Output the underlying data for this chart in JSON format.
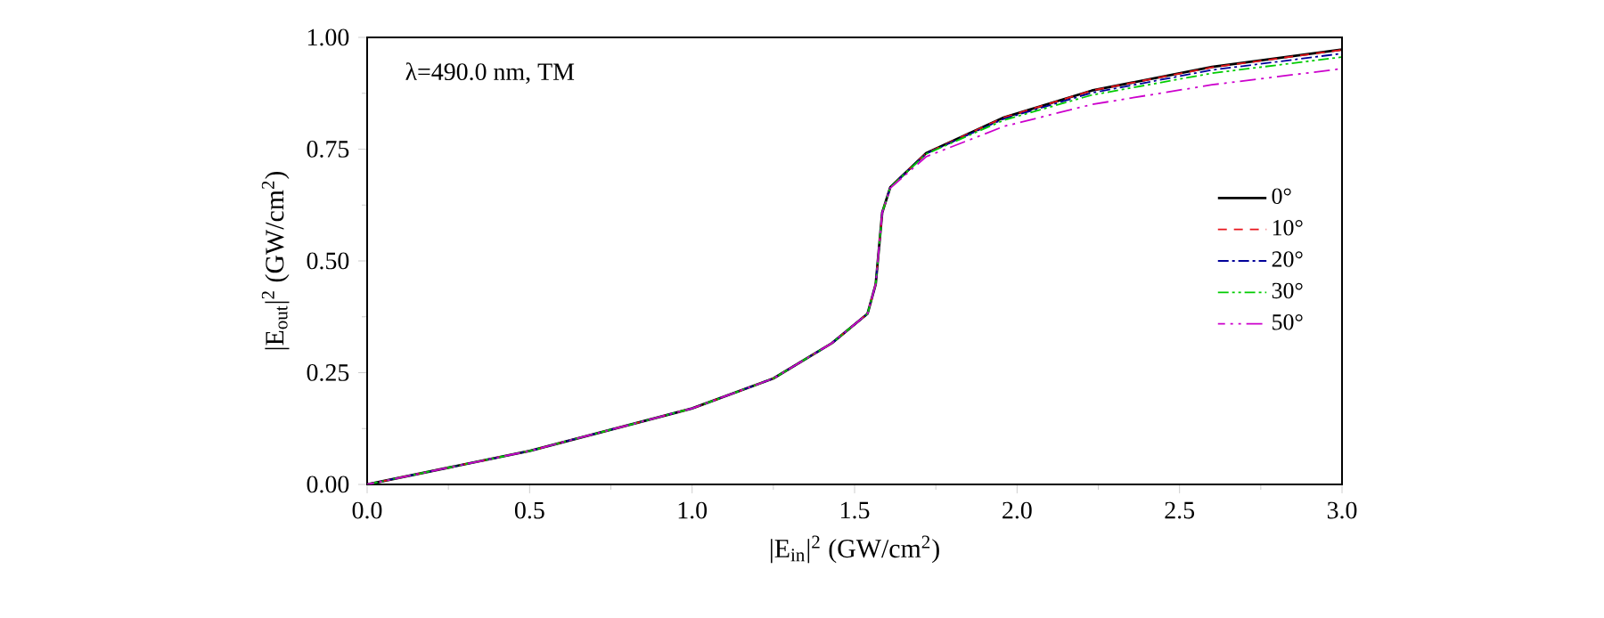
{
  "chart_data": {
    "type": "line",
    "xlabel": "|E$_{in}$|$^{2}$ (GW/cm$^{2}$)",
    "ylabel": "|E$_{out}$|$^{2}$ (GW/cm$^{2}$)",
    "annotations": [
      "λ=490.0 nm,   TM"
    ],
    "x": [
      0,
      0.5,
      1.0,
      1.25,
      1.43,
      1.54,
      1.565,
      1.575,
      1.585,
      1.61,
      1.72,
      1.96,
      2.23,
      2.6,
      3.0
    ],
    "series": [
      {
        "name": "0°",
        "color": "#000000",
        "line_style": "solid",
        "values": [
          0,
          0.075,
          0.17,
          0.237,
          0.316,
          0.382,
          0.448,
          0.528,
          0.608,
          0.665,
          0.741,
          0.821,
          0.881,
          0.934,
          0.973
        ]
      },
      {
        "name": "10°",
        "color": "#e8141c",
        "line_style": "dashed",
        "values": [
          0,
          0.075,
          0.17,
          0.237,
          0.316,
          0.382,
          0.448,
          0.528,
          0.608,
          0.665,
          0.741,
          0.821,
          0.881,
          0.933,
          0.972
        ]
      },
      {
        "name": "20°",
        "color": "#000099",
        "line_style": "dashdotted",
        "values": [
          0,
          0.075,
          0.17,
          0.237,
          0.316,
          0.382,
          0.448,
          0.528,
          0.608,
          0.665,
          0.74,
          0.818,
          0.876,
          0.927,
          0.964
        ]
      },
      {
        "name": "30°",
        "color": "#00cc00",
        "line_style": "dashdotdotted",
        "values": [
          0,
          0.075,
          0.17,
          0.237,
          0.316,
          0.382,
          0.448,
          0.528,
          0.608,
          0.665,
          0.739,
          0.815,
          0.871,
          0.92,
          0.956
        ]
      },
      {
        "name": "50°",
        "color": "#cc00cc",
        "line_style": "longdashdotdotted",
        "values": [
          0,
          0.075,
          0.17,
          0.237,
          0.316,
          0.382,
          0.448,
          0.528,
          0.608,
          0.663,
          0.733,
          0.801,
          0.85,
          0.894,
          0.93
        ]
      }
    ],
    "xlim": [
      0,
      3.0
    ],
    "ylim": [
      0,
      1.0
    ],
    "xticks": [
      {
        "value": 0,
        "label": "0.0"
      },
      {
        "value": 0.5,
        "label": "0.5"
      },
      {
        "value": 1.0,
        "label": "1.0"
      },
      {
        "value": 1.5,
        "label": "1.5"
      },
      {
        "value": 2.0,
        "label": "2.0"
      },
      {
        "value": 2.5,
        "label": "2.5"
      },
      {
        "value": 3.0,
        "label": "3.0"
      }
    ],
    "yticks": [
      {
        "value": 0,
        "label": "0.00"
      },
      {
        "value": 0.25,
        "label": "0.25"
      },
      {
        "value": 0.5,
        "label": "0.50"
      },
      {
        "value": 0.75,
        "label": "0.75"
      },
      {
        "value": 1.0,
        "label": "1.00"
      }
    ],
    "grid": false,
    "legend": "right",
    "marker": "none"
  }
}
